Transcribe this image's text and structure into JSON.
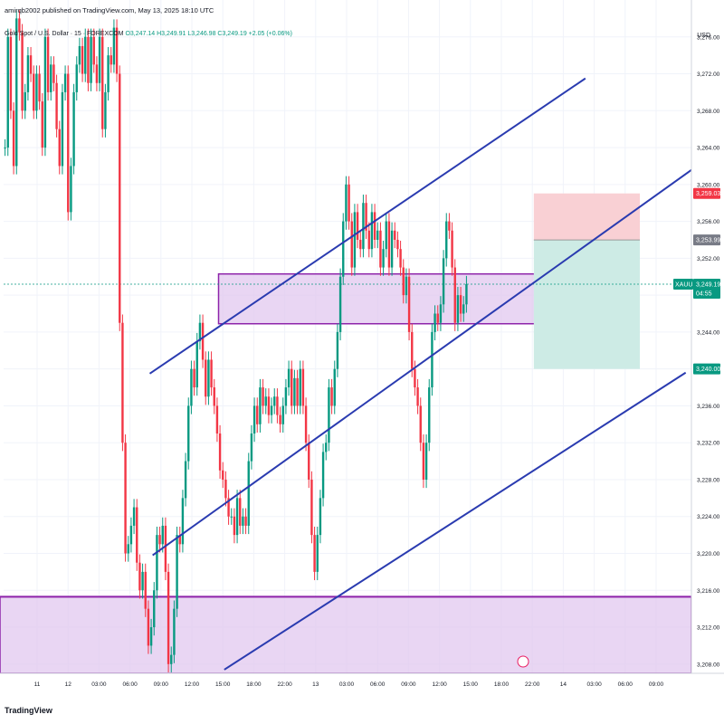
{
  "header": {
    "published": "amirqb2002 published on TradingView.com, May 13, 2025 18:10 UTC",
    "symbol": "Gold Spot / U.S. Dollar · 15 · FOREXCOM",
    "ohlc": "O3,247.14 H3,249.91 L3,246.98 C3,249.19 +2.05 (+0.06%)",
    "currency": "USD",
    "logo": "TradingView"
  },
  "colors": {
    "up": "#089981",
    "down": "#f23645",
    "channel": "#2a3bb0",
    "zone_fill": "#e1c8ef",
    "zone_border": "#8e24aa",
    "stop_fill": "#f9d0d4",
    "target_fill": "#cdebe5"
  },
  "chart_data": {
    "type": "candlestick",
    "ylim": [
      3207,
      3280
    ],
    "y_ticks": [
      "3,276.00",
      "3,272.00",
      "3,268.00",
      "3,264.00",
      "3,260.00",
      "3,256.00",
      "3,252.00",
      "3,248.00",
      "3,244.00",
      "3,240.00",
      "3,236.00",
      "3,232.00",
      "3,228.00",
      "3,224.00",
      "3,220.00",
      "3,216.00",
      "3,212.00",
      "3,208.00"
    ],
    "x_ticks": [
      "11",
      "12",
      "03:00",
      "06:00",
      "09:00",
      "12:00",
      "15:00",
      "18:00",
      "22:00",
      "13",
      "03:00",
      "06:00",
      "09:00",
      "12:00",
      "15:00",
      "18:00",
      "22:00",
      "14",
      "03:00",
      "06:00",
      "09:00"
    ],
    "price_tags": {
      "stop": "3,259.03",
      "entry": "3,253.99",
      "symbol_label": "XAUUSD",
      "current": "3,249.19",
      "countdown": "04:55",
      "target": "3,240.00"
    },
    "levels": {
      "stop": 3259.03,
      "entry": 3253.99,
      "current": 3249.19,
      "target": 3240.0
    },
    "zones": [
      {
        "low": 3244.9,
        "high": 3250.3,
        "from_index": 75,
        "to_index": 196
      },
      {
        "low": 3207,
        "high": 3215.3,
        "from_index": 0,
        "to_index": 240
      }
    ],
    "channel_lines": [
      {
        "start": [
          51,
          3239.5
        ],
        "end": [
          203,
          3271.5
        ]
      },
      {
        "start": [
          52,
          3219.8
        ],
        "end": [
          241,
          3261.8
        ]
      },
      {
        "start": [
          77,
          3207.4
        ],
        "end": [
          238,
          3239.6
        ]
      }
    ],
    "position": {
      "from_index": 185,
      "to_index": 222
    },
    "candles": [
      [
        3264,
        3276,
        3268,
        3262,
        3278,
        3276.5
      ],
      [
        3268,
        3270,
        3274,
        3272,
        3268,
        3272,
        3269,
        3264,
        3276,
        3270,
        3273,
        3271,
        3266,
        3262,
        3270,
        3272
      ],
      [
        3257,
        3262,
        3270,
        3273,
        3275,
        3272,
        3276,
        3271,
        3276,
        3273,
        3271,
        3276,
        3266,
        3270,
        3274,
        3273,
        3277
      ],
      [
        3272,
        3245,
        3232,
        3220,
        3221,
        3223,
        3225,
        3219,
        3216,
        3218,
        3214,
        3210,
        3212,
        3216,
        3222,
        3221,
        3223,
        3218,
        3208
      ],
      [
        3209,
        3214,
        3222,
        3221,
        3226,
        3230,
        3236,
        3240,
        3238,
        3243,
        3245,
        3241,
        3237,
        3241,
        3238,
        3236,
        3233,
        3229,
        3228
      ],
      [
        3226,
        3224,
        3224,
        3222,
        3226,
        3223,
        3224,
        3223,
        3230,
        3233,
        3236,
        3234,
        3238,
        3236,
        3237,
        3235,
        3236,
        3237,
        3235
      ],
      [
        3234,
        3236,
        3238,
        3240,
        3236,
        3239,
        3236,
        3240,
        3236,
        3232,
        3228,
        3222,
        3218,
        3222,
        3226,
        3231,
        3232,
        3238,
        3236
      ],
      [
        3240,
        3244,
        3250,
        3256,
        3260,
        3256,
        3251,
        3257,
        3254,
        3253,
        3258,
        3255,
        3253,
        3257,
        3254,
        3255,
        3251,
        3253,
        3256
      ],
      [
        3251,
        3255,
        3254,
        3253,
        3251,
        3248,
        3250,
        3244,
        3240,
        3238,
        3236,
        3232,
        3228,
        3232,
        3238,
        3244,
        3246,
        3245,
        3247
      ],
      [
        3252,
        3256,
        3255,
        3251,
        3245,
        3248,
        3246,
        3247,
        3249.19
      ]
    ]
  }
}
